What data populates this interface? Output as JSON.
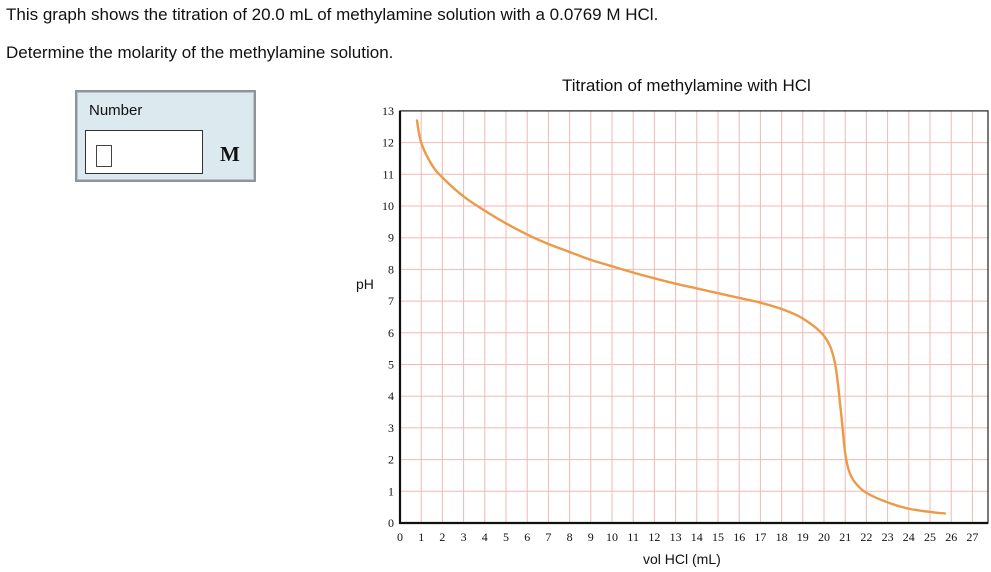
{
  "question": {
    "line1": "This graph shows the titration of 20.0 mL of methylamine solution with a 0.0769 M HCl.",
    "line2": "Determine the molarity of the methylamine solution."
  },
  "answer": {
    "label": "Number",
    "value": "",
    "placeholder": "",
    "unit": "M"
  },
  "colors": {
    "curve": "#ec9a48",
    "grid": "#f0b8b8",
    "axis": "#111111",
    "answer_bg": "#dce9ee"
  },
  "chart_data": {
    "type": "line",
    "title": "Titration of methylamine with HCl",
    "xlabel": "vol HCl (mL)",
    "ylabel": "pH",
    "xlim": [
      0,
      27
    ],
    "ylim": [
      0,
      13
    ],
    "grid": true,
    "legend": null,
    "x_ticks": [
      0,
      1,
      2,
      3,
      4,
      5,
      6,
      7,
      8,
      9,
      10,
      11,
      12,
      13,
      14,
      15,
      16,
      17,
      18,
      19,
      20,
      21,
      22,
      23,
      24,
      25,
      26,
      27
    ],
    "y_ticks": [
      0,
      1,
      2,
      3,
      4,
      5,
      6,
      7,
      8,
      9,
      10,
      11,
      12,
      13
    ],
    "series": [
      {
        "name": "pH",
        "x": [
          0.8,
          1.0,
          1.5,
          2.0,
          3.0,
          4.0,
          5.0,
          6.0,
          7.0,
          8.0,
          9.0,
          10.0,
          11.0,
          12.0,
          13.0,
          14.0,
          15.0,
          16.0,
          17.0,
          18.0,
          19.0,
          20.0,
          20.5,
          20.8,
          21.0,
          21.2,
          21.5,
          22.0,
          23.0,
          24.0,
          25.0,
          25.7
        ],
        "y": [
          12.7,
          12.0,
          11.3,
          10.9,
          10.3,
          9.85,
          9.45,
          9.1,
          8.8,
          8.55,
          8.3,
          8.1,
          7.9,
          7.72,
          7.55,
          7.4,
          7.25,
          7.1,
          6.95,
          6.75,
          6.45,
          5.9,
          5.1,
          3.5,
          2.2,
          1.6,
          1.25,
          0.95,
          0.65,
          0.45,
          0.35,
          0.3
        ]
      }
    ]
  }
}
